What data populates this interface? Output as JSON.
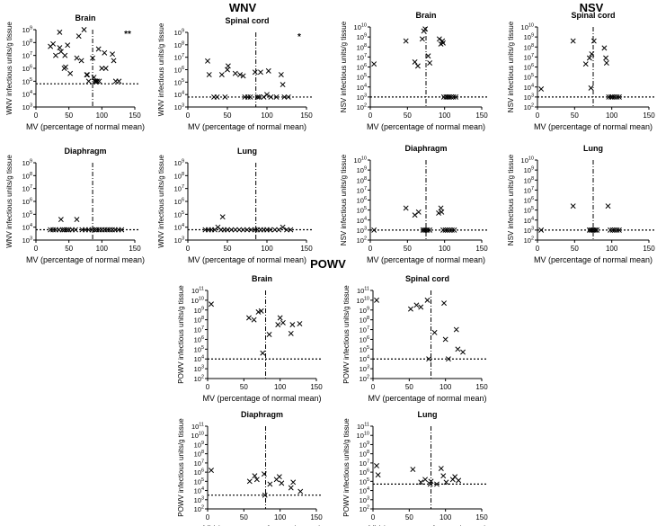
{
  "groups": [
    {
      "title": "WNV"
    },
    {
      "title": "NSV"
    },
    {
      "title": "POWV"
    }
  ],
  "chart_data": [
    {
      "type": "scatter",
      "group": "WNV",
      "title": "Brain",
      "xlabel": "MV (percentage of normal mean)",
      "ylabel": "WNV infectious units/g tissue",
      "xlim": [
        0,
        150
      ],
      "xticks": [
        "0",
        "50",
        "100",
        "150"
      ],
      "yexp": [
        3,
        4,
        5,
        6,
        7,
        8,
        9
      ],
      "threshold_x": 86,
      "detection_limit_log": 4.8,
      "annotation": "**",
      "points": [
        [
          22,
          7.7
        ],
        [
          26,
          7.9
        ],
        [
          30,
          7.0
        ],
        [
          36,
          7.6
        ],
        [
          36,
          8.8
        ],
        [
          38,
          7.3
        ],
        [
          43,
          6.0
        ],
        [
          44,
          7.0
        ],
        [
          45,
          6.1
        ],
        [
          48,
          7.8
        ],
        [
          52,
          5.6
        ],
        [
          62,
          6.8
        ],
        [
          65,
          8.5
        ],
        [
          69,
          6.6
        ],
        [
          73,
          9.0
        ],
        [
          77,
          5.5
        ],
        [
          78,
          5.5
        ],
        [
          80,
          5.0
        ],
        [
          86,
          6.8
        ],
        [
          88,
          5.3
        ],
        [
          89,
          5.0
        ],
        [
          91,
          5.0
        ],
        [
          93,
          5.0
        ],
        [
          95,
          7.5
        ],
        [
          96,
          5.0
        ],
        [
          100,
          6.0
        ],
        [
          104,
          7.2
        ],
        [
          106,
          6.0
        ],
        [
          116,
          7.1
        ],
        [
          118,
          6.6
        ],
        [
          121,
          5.0
        ],
        [
          126,
          5.0
        ]
      ]
    },
    {
      "type": "scatter",
      "group": "WNV",
      "title": "Spinal cord",
      "xlabel": "MV (percentage of normal mean)",
      "ylabel": "WNV infectious units/g tissue",
      "xlim": [
        0,
        150
      ],
      "xticks": [
        "0",
        "50",
        "100",
        "150"
      ],
      "yexp": [
        3,
        4,
        5,
        6,
        7,
        8,
        9
      ],
      "threshold_x": 86,
      "detection_limit_log": 3.8,
      "annotation": "*",
      "points": [
        [
          25,
          6.7
        ],
        [
          27,
          5.6
        ],
        [
          33,
          3.8
        ],
        [
          37,
          3.8
        ],
        [
          43,
          5.6
        ],
        [
          47,
          3.8
        ],
        [
          50,
          6.0
        ],
        [
          51,
          6.3
        ],
        [
          60,
          5.7
        ],
        [
          66,
          5.6
        ],
        [
          70,
          5.5
        ],
        [
          72,
          3.8
        ],
        [
          76,
          3.8
        ],
        [
          79,
          3.8
        ],
        [
          85,
          5.8
        ],
        [
          88,
          3.8
        ],
        [
          90,
          3.8
        ],
        [
          92,
          5.8
        ],
        [
          96,
          3.8
        ],
        [
          100,
          4.0
        ],
        [
          102,
          5.9
        ],
        [
          105,
          3.8
        ],
        [
          112,
          3.8
        ],
        [
          118,
          5.6
        ],
        [
          120,
          4.8
        ],
        [
          122,
          3.8
        ],
        [
          127,
          3.8
        ]
      ]
    },
    {
      "type": "scatter",
      "group": "NSV",
      "title": "Brain",
      "xlabel": "MV (percentage of normal mean)",
      "ylabel": "NSV infectious units/g tissue",
      "xlim": [
        0,
        150
      ],
      "xticks": [
        "0",
        "50",
        "100",
        "150"
      ],
      "yexp": [
        2,
        3,
        4,
        5,
        6,
        7,
        8,
        9,
        10
      ],
      "threshold_x": 75,
      "detection_limit_log": 3.0,
      "points": [
        [
          5,
          6.3
        ],
        [
          48,
          8.6
        ],
        [
          60,
          6.5
        ],
        [
          64,
          6.1
        ],
        [
          70,
          8.8
        ],
        [
          72,
          9.6
        ],
        [
          74,
          9.8
        ],
        [
          78,
          7.1
        ],
        [
          80,
          6.4
        ],
        [
          93,
          8.8
        ],
        [
          95,
          8.3
        ],
        [
          97,
          8.6
        ],
        [
          98,
          8.4
        ],
        [
          99,
          3.0
        ],
        [
          102,
          3.0
        ],
        [
          104,
          3.0
        ],
        [
          106,
          3.0
        ],
        [
          109,
          3.0
        ],
        [
          112,
          3.0
        ],
        [
          115,
          3.0
        ]
      ]
    },
    {
      "type": "scatter",
      "group": "NSV",
      "title": "Spinal cord",
      "xlabel": "MV (percentage of normal mean)",
      "ylabel": "NSV infectious units/g tissue",
      "xlim": [
        0,
        150
      ],
      "xticks": [
        "0",
        "50",
        "100",
        "150"
      ],
      "yexp": [
        2,
        3,
        4,
        5,
        6,
        7,
        8,
        9,
        10
      ],
      "threshold_x": 75,
      "detection_limit_log": 3.0,
      "points": [
        [
          5,
          3.8
        ],
        [
          48,
          8.6
        ],
        [
          65,
          6.3
        ],
        [
          70,
          6.9
        ],
        [
          72,
          3.9
        ],
        [
          73,
          7.3
        ],
        [
          76,
          8.6
        ],
        [
          90,
          7.9
        ],
        [
          92,
          6.9
        ],
        [
          93,
          6.4
        ],
        [
          96,
          3.0
        ],
        [
          99,
          3.0
        ],
        [
          101,
          3.0
        ],
        [
          104,
          3.0
        ],
        [
          107,
          3.0
        ],
        [
          110,
          3.0
        ]
      ]
    },
    {
      "type": "scatter",
      "group": "WNV",
      "title": "Diaphragm",
      "xlabel": "MV (percentage of normal mean)",
      "ylabel": "WNV infectious units/g tissue",
      "xlim": [
        0,
        150
      ],
      "xticks": [
        "0",
        "50",
        "100",
        "150"
      ],
      "yexp": [
        3,
        4,
        5,
        6,
        7,
        8,
        9
      ],
      "threshold_x": 86,
      "detection_limit_log": 3.8,
      "points": [
        [
          22,
          3.8
        ],
        [
          26,
          3.8
        ],
        [
          30,
          3.8
        ],
        [
          35,
          3.8
        ],
        [
          38,
          4.6
        ],
        [
          40,
          3.8
        ],
        [
          43,
          3.8
        ],
        [
          47,
          3.8
        ],
        [
          50,
          3.8
        ],
        [
          55,
          3.8
        ],
        [
          60,
          3.8
        ],
        [
          62,
          4.6
        ],
        [
          70,
          3.8
        ],
        [
          75,
          3.8
        ],
        [
          80,
          3.8
        ],
        [
          85,
          3.8
        ],
        [
          89,
          3.8
        ],
        [
          92,
          3.8
        ],
        [
          96,
          3.8
        ],
        [
          100,
          3.8
        ],
        [
          104,
          3.8
        ],
        [
          108,
          3.8
        ],
        [
          112,
          3.8
        ],
        [
          116,
          3.8
        ],
        [
          120,
          3.8
        ],
        [
          125,
          3.8
        ],
        [
          130,
          3.8
        ]
      ]
    },
    {
      "type": "scatter",
      "group": "WNV",
      "title": "Lung",
      "xlabel": "MV (percentage of normal mean)",
      "ylabel": "WNV infectious units/g tissue",
      "xlim": [
        0,
        150
      ],
      "xticks": [
        "0",
        "50",
        "100",
        "150"
      ],
      "yexp": [
        3,
        4,
        5,
        6,
        7,
        8,
        9
      ],
      "threshold_x": 86,
      "detection_limit_log": 3.8,
      "points": [
        [
          22,
          3.8
        ],
        [
          26,
          3.8
        ],
        [
          30,
          3.8
        ],
        [
          34,
          3.8
        ],
        [
          38,
          4.0
        ],
        [
          42,
          3.8
        ],
        [
          44,
          4.8
        ],
        [
          46,
          3.8
        ],
        [
          50,
          3.8
        ],
        [
          55,
          3.8
        ],
        [
          60,
          3.8
        ],
        [
          65,
          3.8
        ],
        [
          70,
          3.8
        ],
        [
          75,
          3.8
        ],
        [
          80,
          3.8
        ],
        [
          85,
          3.8
        ],
        [
          88,
          3.8
        ],
        [
          92,
          3.8
        ],
        [
          96,
          3.8
        ],
        [
          100,
          3.8
        ],
        [
          104,
          3.8
        ],
        [
          110,
          3.8
        ],
        [
          115,
          3.8
        ],
        [
          120,
          4.0
        ],
        [
          125,
          3.8
        ],
        [
          130,
          3.8
        ]
      ]
    },
    {
      "type": "scatter",
      "group": "NSV",
      "title": "Diaphragm",
      "xlabel": "MV (percentage of normal mean)",
      "ylabel": "NSV infectious units/g tissue",
      "xlim": [
        0,
        150
      ],
      "xticks": [
        "0",
        "50",
        "100",
        "150"
      ],
      "yexp": [
        2,
        3,
        4,
        5,
        6,
        7,
        8,
        9,
        10
      ],
      "threshold_x": 75,
      "detection_limit_log": 3.0,
      "points": [
        [
          5,
          3.0
        ],
        [
          48,
          5.2
        ],
        [
          60,
          4.5
        ],
        [
          65,
          4.8
        ],
        [
          71,
          3.0
        ],
        [
          73,
          3.0
        ],
        [
          75,
          3.0
        ],
        [
          77,
          3.0
        ],
        [
          80,
          3.0
        ],
        [
          92,
          4.7
        ],
        [
          95,
          5.2
        ],
        [
          96,
          4.8
        ],
        [
          98,
          3.0
        ],
        [
          101,
          3.0
        ],
        [
          104,
          3.0
        ],
        [
          107,
          3.0
        ],
        [
          110,
          3.0
        ],
        [
          113,
          3.0
        ]
      ]
    },
    {
      "type": "scatter",
      "group": "NSV",
      "title": "Lung",
      "xlabel": "MV (percentage of normal mean)",
      "ylabel": "NSV infectious units/g tissue",
      "xlim": [
        0,
        150
      ],
      "xticks": [
        "0",
        "50",
        "100",
        "150"
      ],
      "yexp": [
        2,
        3,
        4,
        5,
        6,
        7,
        8,
        9,
        10
      ],
      "threshold_x": 75,
      "detection_limit_log": 3.0,
      "points": [
        [
          5,
          3.0
        ],
        [
          48,
          5.4
        ],
        [
          70,
          3.0
        ],
        [
          72,
          3.0
        ],
        [
          74,
          3.0
        ],
        [
          76,
          3.0
        ],
        [
          78,
          3.0
        ],
        [
          80,
          3.0
        ],
        [
          95,
          5.4
        ],
        [
          98,
          3.0
        ],
        [
          101,
          3.0
        ],
        [
          104,
          3.0
        ],
        [
          107,
          3.0
        ],
        [
          110,
          3.0
        ]
      ]
    },
    {
      "type": "scatter",
      "group": "POWV",
      "title": "Brain",
      "xlabel": "MV (percentage of normal mean)",
      "ylabel": "POWV infectious units/g tissue",
      "xlim": [
        0,
        150
      ],
      "xticks": [
        "0",
        "50",
        "100",
        "150"
      ],
      "yexp": [
        2,
        3,
        4,
        5,
        6,
        7,
        8,
        9,
        10,
        11
      ],
      "threshold_x": 80,
      "detection_limit_log": 4.0,
      "points": [
        [
          5,
          9.6
        ],
        [
          57,
          8.2
        ],
        [
          64,
          8.0
        ],
        [
          70,
          8.8
        ],
        [
          74,
          8.9
        ],
        [
          76,
          4.6
        ],
        [
          85,
          6.5
        ],
        [
          97,
          7.5
        ],
        [
          100,
          8.2
        ],
        [
          104,
          7.7
        ],
        [
          115,
          6.6
        ],
        [
          117,
          7.5
        ],
        [
          127,
          7.6
        ]
      ]
    },
    {
      "type": "scatter",
      "group": "POWV",
      "title": "Spinal cord",
      "xlabel": "MV (percentage of normal mean)",
      "ylabel": "POWV infectious units/g tissue",
      "xlim": [
        0,
        150
      ],
      "xticks": [
        "0",
        "50",
        "100",
        "150"
      ],
      "yexp": [
        2,
        3,
        4,
        5,
        6,
        7,
        8,
        9,
        10,
        11
      ],
      "threshold_x": 80,
      "detection_limit_log": 4.0,
      "points": [
        [
          5,
          10.0
        ],
        [
          52,
          9.1
        ],
        [
          60,
          9.5
        ],
        [
          66,
          9.3
        ],
        [
          75,
          10.0
        ],
        [
          77,
          4.0
        ],
        [
          85,
          6.7
        ],
        [
          98,
          9.7
        ],
        [
          104,
          4.0
        ],
        [
          100,
          6.0
        ],
        [
          115,
          7.0
        ],
        [
          117,
          5.0
        ],
        [
          124,
          4.7
        ]
      ]
    },
    {
      "type": "scatter",
      "group": "POWV",
      "title": "Diaphragm",
      "xlabel": "MV (percentage of normal mean)",
      "ylabel": "POWV infectious units/g tissue",
      "xlim": [
        0,
        150
      ],
      "xticks": [
        "0",
        "50",
        "100",
        "150"
      ],
      "yexp": [
        2,
        3,
        4,
        5,
        6,
        7,
        8,
        9,
        10,
        11
      ],
      "threshold_x": 80,
      "detection_limit_log": 3.5,
      "points": [
        [
          5,
          6.2
        ],
        [
          58,
          5.0
        ],
        [
          65,
          5.6
        ],
        [
          68,
          5.2
        ],
        [
          78,
          5.8
        ],
        [
          79,
          3.5
        ],
        [
          86,
          4.7
        ],
        [
          95,
          5.2
        ],
        [
          99,
          5.5
        ],
        [
          102,
          4.8
        ],
        [
          115,
          4.3
        ],
        [
          118,
          4.9
        ],
        [
          128,
          3.9
        ]
      ]
    },
    {
      "type": "scatter",
      "group": "POWV",
      "title": "Lung",
      "xlabel": "MV (percentage of normal mean)",
      "ylabel": "POWV infectious units/g tissue",
      "xlim": [
        0,
        150
      ],
      "xticks": [
        "0",
        "50",
        "100",
        "150"
      ],
      "yexp": [
        2,
        3,
        4,
        5,
        6,
        7,
        8,
        9,
        10,
        11
      ],
      "threshold_x": 80,
      "detection_limit_log": 4.7,
      "points": [
        [
          5,
          6.7
        ],
        [
          7,
          5.7
        ],
        [
          55,
          6.3
        ],
        [
          66,
          4.9
        ],
        [
          72,
          5.2
        ],
        [
          79,
          4.7
        ],
        [
          80,
          5.0
        ],
        [
          88,
          4.7
        ],
        [
          94,
          6.4
        ],
        [
          97,
          5.6
        ],
        [
          101,
          4.9
        ],
        [
          110,
          5.2
        ],
        [
          113,
          5.5
        ],
        [
          118,
          5.1
        ]
      ]
    }
  ]
}
